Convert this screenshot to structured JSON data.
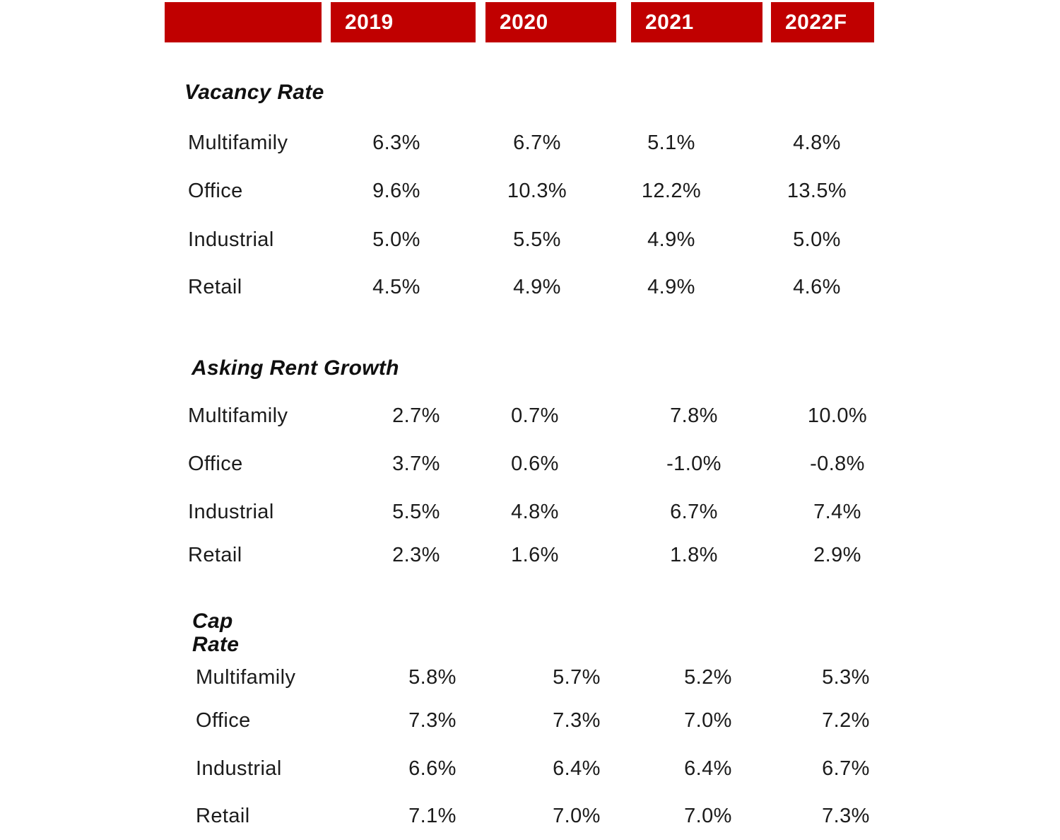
{
  "colors": {
    "header_background": "#C00000",
    "header_text": "#FFFFFF",
    "body_text": "#1B1B1B"
  },
  "chart_data": {
    "type": "table",
    "columns": [
      "2019",
      "2020",
      "2021",
      "2022F"
    ],
    "row_groups": [
      {
        "group": "Vacancy Rate",
        "rows": [
          {
            "name": "Multifamily",
            "values": [
              "6.3%",
              "6.7%",
              "5.1%",
              "4.8%"
            ]
          },
          {
            "name": "Office",
            "values": [
              "9.6%",
              "10.3%",
              "12.2%",
              "13.5%"
            ]
          },
          {
            "name": "Industrial",
            "values": [
              "5.0%",
              "5.5%",
              "4.9%",
              "5.0%"
            ]
          },
          {
            "name": "Retail",
            "values": [
              "4.5%",
              "4.9%",
              "4.9%",
              "4.6%"
            ]
          }
        ]
      },
      {
        "group": "Asking Rent Growth",
        "rows": [
          {
            "name": "Multifamily",
            "values": [
              "2.7%",
              "0.7%",
              "7.8%",
              "10.0%"
            ]
          },
          {
            "name": "Office",
            "values": [
              "3.7%",
              "0.6%",
              "-1.0%",
              "-0.8%"
            ]
          },
          {
            "name": "Industrial",
            "values": [
              "5.5%",
              "4.8%",
              "6.7%",
              "7.4%"
            ]
          },
          {
            "name": "Retail",
            "values": [
              "2.3%",
              "1.6%",
              "1.8%",
              "2.9%"
            ]
          }
        ]
      },
      {
        "group": "Cap Rate",
        "rows": [
          {
            "name": "Multifamily",
            "values": [
              "5.8%",
              "5.7%",
              "5.2%",
              "5.3%"
            ]
          },
          {
            "name": "Office",
            "values": [
              "7.3%",
              "7.3%",
              "7.0%",
              "7.2%"
            ]
          },
          {
            "name": "Industrial",
            "values": [
              "6.6%",
              "6.4%",
              "6.4%",
              "6.7%"
            ]
          },
          {
            "name": "Retail",
            "values": [
              "7.1%",
              "7.0%",
              "7.0%",
              "7.3%"
            ]
          }
        ]
      }
    ]
  }
}
